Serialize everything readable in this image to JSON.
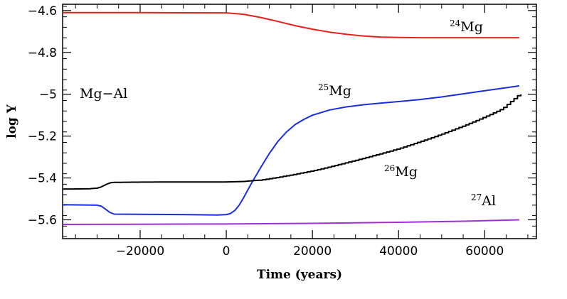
{
  "chart_data": {
    "type": "line",
    "title": "",
    "xlabel": "Time (years)",
    "ylabel": "log Y",
    "xlim": [
      -38000,
      72000
    ],
    "ylim": [
      -5.69,
      -4.57
    ],
    "annotation": "Mg−Al",
    "x_ticks": [
      -20000,
      0,
      20000,
      40000,
      60000
    ],
    "x_tick_labels": [
      "−20000",
      "0",
      "20000",
      "40000",
      "60000"
    ],
    "y_ticks": [
      -4.6,
      -4.8,
      -5,
      -5.2,
      -5.4,
      -5.6
    ],
    "y_tick_labels": [
      "−4.6",
      "−4.8",
      "−5",
      "−5.2",
      "−5.4",
      "−5.6"
    ],
    "series": [
      {
        "name": "24Mg",
        "mass": "24",
        "element": "Mg",
        "color": "#e8201c",
        "stepped": false,
        "x": [
          -38000,
          -20000,
          0,
          4000,
          8000,
          12000,
          16000,
          20000,
          24000,
          28000,
          32000,
          36000,
          40000,
          45000,
          50000,
          60000,
          68000
        ],
        "values": [
          -4.61,
          -4.61,
          -4.611,
          -4.618,
          -4.633,
          -4.652,
          -4.672,
          -4.689,
          -4.703,
          -4.714,
          -4.722,
          -4.727,
          -4.729,
          -4.73,
          -4.73,
          -4.73,
          -4.73
        ]
      },
      {
        "name": "25Mg",
        "mass": "25",
        "element": "Mg",
        "color": "#1a2ee0",
        "stepped": false,
        "x": [
          -38000,
          -30000,
          -29000,
          -28000,
          -27000,
          -26000,
          -20000,
          -10000,
          -2000,
          0,
          1000,
          2000,
          3000,
          4000,
          5000,
          6000,
          7000,
          8000,
          10000,
          12000,
          14000,
          16000,
          18000,
          20000,
          24000,
          28000,
          32000,
          36000,
          40000,
          45000,
          50000,
          55000,
          60000,
          64000,
          68000
        ],
        "values": [
          -5.528,
          -5.53,
          -5.535,
          -5.55,
          -5.565,
          -5.573,
          -5.574,
          -5.575,
          -5.577,
          -5.575,
          -5.57,
          -5.555,
          -5.53,
          -5.495,
          -5.458,
          -5.42,
          -5.385,
          -5.35,
          -5.283,
          -5.225,
          -5.18,
          -5.145,
          -5.12,
          -5.1,
          -5.075,
          -5.06,
          -5.05,
          -5.042,
          -5.035,
          -5.025,
          -5.013,
          -4.998,
          -4.983,
          -4.972,
          -4.96
        ]
      },
      {
        "name": "26Mg",
        "mass": "26",
        "element": "Mg",
        "color": "#000000",
        "stepped": true,
        "x": [
          -38000,
          -32000,
          -30000,
          -29000,
          -28000,
          -27000,
          -26000,
          -20000,
          -10000,
          0,
          4000,
          8000,
          12000,
          16000,
          20000,
          24000,
          28000,
          32000,
          36000,
          40000,
          44000,
          48000,
          52000,
          56000,
          60000,
          64000,
          68000,
          69000
        ],
        "values": [
          -5.453,
          -5.452,
          -5.449,
          -5.443,
          -5.432,
          -5.423,
          -5.421,
          -5.42,
          -5.419,
          -5.419,
          -5.417,
          -5.41,
          -5.397,
          -5.382,
          -5.366,
          -5.347,
          -5.326,
          -5.305,
          -5.283,
          -5.26,
          -5.233,
          -5.205,
          -5.175,
          -5.143,
          -5.108,
          -5.07,
          -5.0,
          -5.0
        ]
      },
      {
        "name": "27Al",
        "mass": "27",
        "element": "Al",
        "color": "#a030d8",
        "stepped": false,
        "x": [
          -38000,
          -20000,
          0,
          20000,
          40000,
          55000,
          68000
        ],
        "values": [
          -5.622,
          -5.621,
          -5.62,
          -5.617,
          -5.612,
          -5.607,
          -5.6
        ]
      }
    ]
  }
}
